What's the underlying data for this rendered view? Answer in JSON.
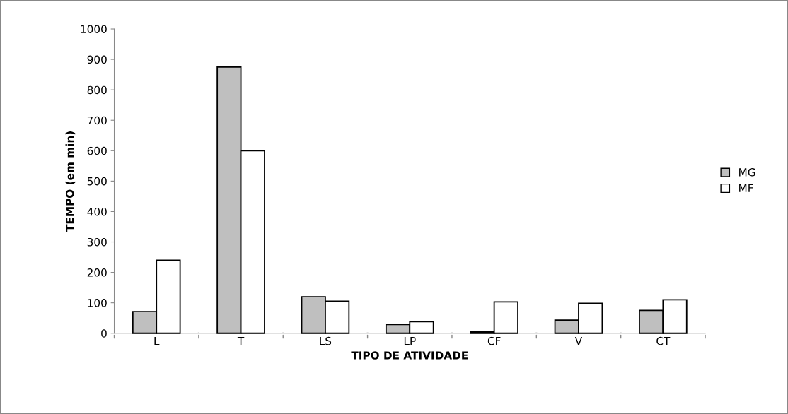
{
  "chart_data": {
    "type": "bar",
    "xlabel": "TIPO DE ATIVIDADE",
    "ylabel": "TEMPO (em min)",
    "categories": [
      "L",
      "T",
      "LS",
      "LP",
      "CF",
      "V",
      "CT"
    ],
    "series": [
      {
        "name": "MG",
        "color": "#bfbfbf",
        "values": [
          71,
          875,
          120,
          29,
          4,
          43,
          75
        ]
      },
      {
        "name": "MF",
        "color": "#ffffff",
        "values": [
          240,
          600,
          105,
          38,
          103,
          98,
          110
        ]
      }
    ],
    "ylim": [
      0,
      1000
    ],
    "yticks": [
      0,
      100,
      200,
      300,
      400,
      500,
      600,
      700,
      800,
      900,
      1000
    ],
    "grid": false,
    "legend": "right"
  }
}
